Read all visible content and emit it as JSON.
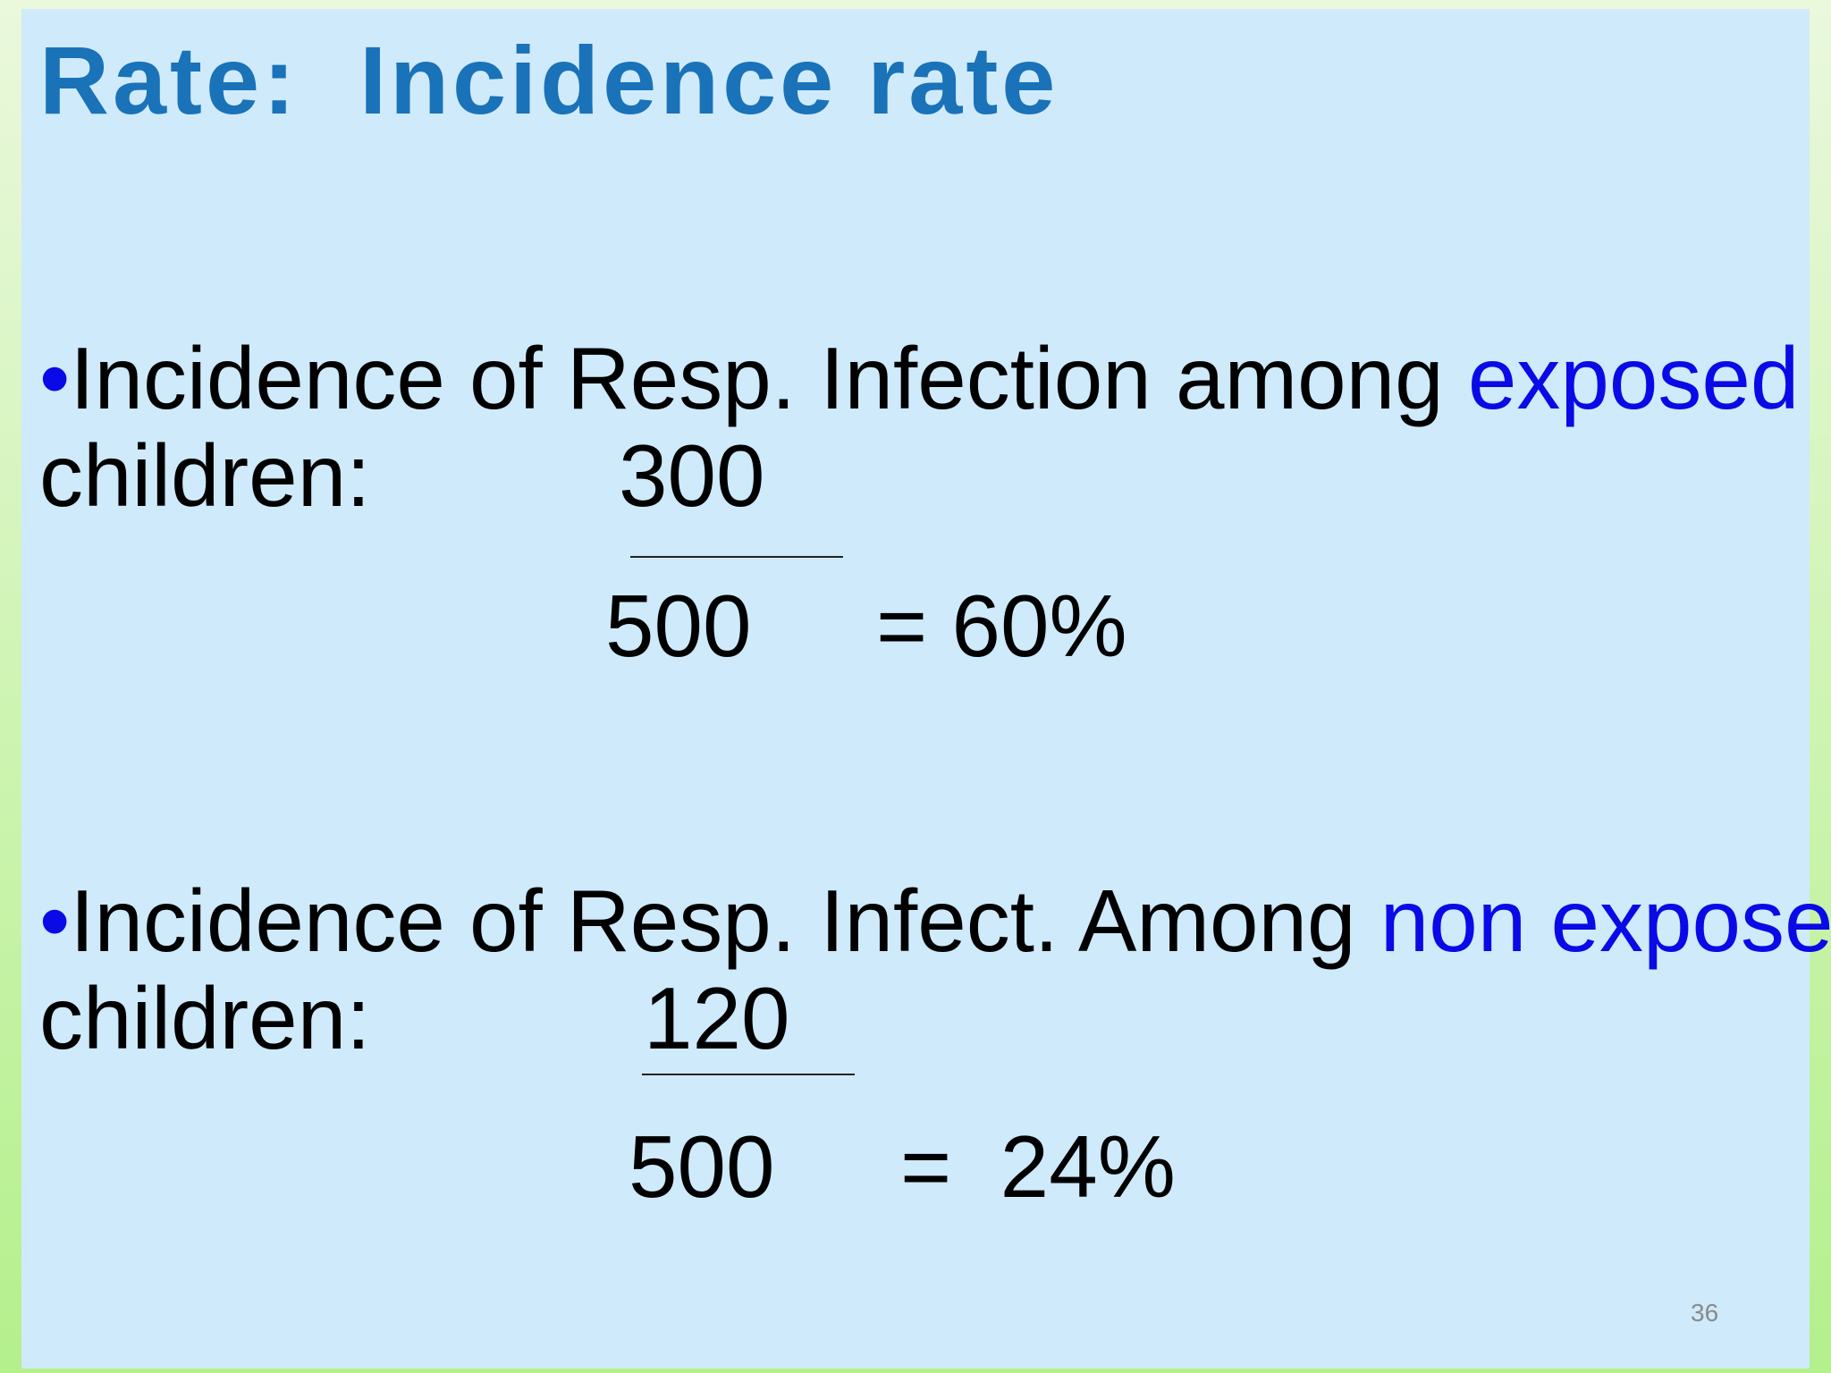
{
  "title": "Rate:  Incidence rate",
  "items": [
    {
      "bullet": "•",
      "text": "Incidence of Resp. Infection among ",
      "highlight": "exposed",
      "continuation": "children:",
      "numerator": "300",
      "denominator": "500",
      "result": "= 60%"
    },
    {
      "bullet": "•",
      "text": "Incidence of Resp. Infect. Among ",
      "highlight": "non exposed",
      "continuation": "children:",
      "numerator": "120",
      "denominator": "500",
      "result": "=  24%"
    }
  ],
  "page_number": "36"
}
